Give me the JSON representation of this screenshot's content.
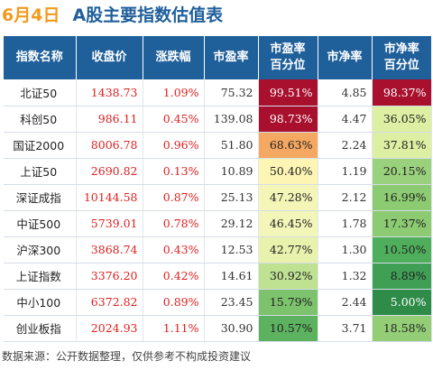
{
  "header": {
    "date": "6月4日",
    "title": "A股主要指数估值表"
  },
  "columns": [
    {
      "line1": "指数名称",
      "line2": ""
    },
    {
      "line1": "收盘价",
      "line2": ""
    },
    {
      "line1": "涨跌幅",
      "line2": ""
    },
    {
      "line1": "市盈率",
      "line2": ""
    },
    {
      "line1": "市盈率",
      "line2": "百分位"
    },
    {
      "line1": "市净率",
      "line2": ""
    },
    {
      "line1": "市净率",
      "line2": "百分位"
    }
  ],
  "rows": [
    {
      "name": "北证50",
      "close": "1438.73",
      "change": "1.09%",
      "pe": "75.32",
      "pe_pct": "99.51%",
      "pb": "4.85",
      "pb_pct": "98.37%",
      "pe_color": "#a8102e",
      "pe_text": "#ffffff",
      "pb_color": "#a8102e",
      "pb_text": "#ffffff"
    },
    {
      "name": "科创50",
      "close": "986.11",
      "change": "0.45%",
      "pe": "139.08",
      "pe_pct": "98.73%",
      "pb": "4.47",
      "pb_pct": "36.05%",
      "pe_color": "#a8102e",
      "pe_text": "#ffffff",
      "pb_color": "#dcefa2",
      "pb_text": "#222222"
    },
    {
      "name": "国证2000",
      "close": "8006.78",
      "change": "0.96%",
      "pe": "51.80",
      "pe_pct": "68.63%",
      "pb": "2.24",
      "pb_pct": "37.81%",
      "pe_color": "#f5a861",
      "pe_text": "#222222",
      "pb_color": "#dcefa2",
      "pb_text": "#222222"
    },
    {
      "name": "上证50",
      "close": "2690.82",
      "change": "0.13%",
      "pe": "10.89",
      "pe_pct": "50.40%",
      "pb": "1.19",
      "pb_pct": "20.15%",
      "pe_color": "#fdf5b4",
      "pe_text": "#222222",
      "pb_color": "#9ad17c",
      "pb_text": "#222222"
    },
    {
      "name": "深证成指",
      "close": "10144.58",
      "change": "0.87%",
      "pe": "25.13",
      "pe_pct": "47.28%",
      "pb": "2.12",
      "pb_pct": "16.99%",
      "pe_color": "#f4f6b8",
      "pe_text": "#222222",
      "pb_color": "#8ccb72",
      "pb_text": "#222222"
    },
    {
      "name": "中证500",
      "close": "5739.01",
      "change": "0.78%",
      "pe": "29.12",
      "pe_pct": "46.45%",
      "pb": "1.78",
      "pb_pct": "17.37%",
      "pe_color": "#f2f6b8",
      "pe_text": "#222222",
      "pb_color": "#8ccb72",
      "pb_text": "#222222"
    },
    {
      "name": "沪深300",
      "close": "3868.74",
      "change": "0.43%",
      "pe": "12.53",
      "pe_pct": "42.77%",
      "pb": "1.30",
      "pb_pct": "10.50%",
      "pe_color": "#e8f2ad",
      "pe_text": "#222222",
      "pb_color": "#4fae5c",
      "pb_text": "#222222"
    },
    {
      "name": "上证指数",
      "close": "3376.20",
      "change": "0.42%",
      "pe": "14.61",
      "pe_pct": "30.92%",
      "pb": "1.32",
      "pb_pct": "8.89%",
      "pe_color": "#bfe192",
      "pe_text": "#222222",
      "pb_color": "#3f9f55",
      "pb_text": "#222222"
    },
    {
      "name": "中小100",
      "close": "6372.82",
      "change": "0.89%",
      "pe": "23.45",
      "pe_pct": "15.79%",
      "pb": "2.44",
      "pb_pct": "5.00%",
      "pe_color": "#7dc26c",
      "pe_text": "#222222",
      "pb_color": "#2e8b48",
      "pb_text": "#ffffff"
    },
    {
      "name": "创业板指",
      "close": "2024.93",
      "change": "1.11%",
      "pe": "30.90",
      "pe_pct": "10.57%",
      "pb": "3.71",
      "pb_pct": "18.58%",
      "pe_color": "#5cb25f",
      "pe_text": "#222222",
      "pb_color": "#93ce77",
      "pb_text": "#222222"
    }
  ],
  "footer": "数据来源：公开数据整理，仅供参考不构成投资建议"
}
